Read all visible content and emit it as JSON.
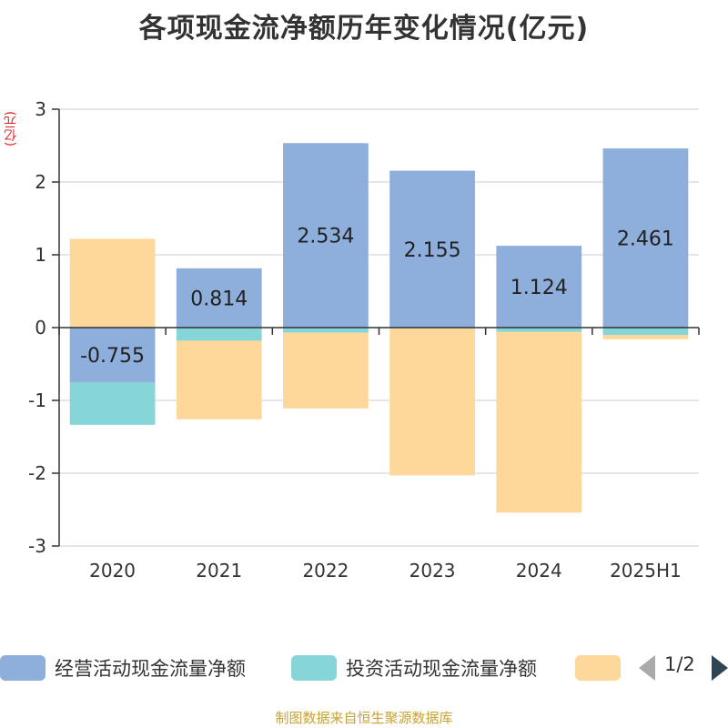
{
  "title": "各项现金流净额历年变化情况(亿元)",
  "unit": "(亿元)",
  "source": "制图数据来自恒生聚源数据库",
  "legend": {
    "items": [
      {
        "label": "经营活动现金流量净额",
        "color": "#8eaedc"
      },
      {
        "label": "投资活动现金流量净额",
        "color": "#86d5d8"
      },
      {
        "label": "",
        "color": "#fdd89a"
      }
    ],
    "page": "1/2"
  },
  "chart_data": {
    "type": "bar",
    "stacked": true,
    "categories": [
      "2020",
      "2021",
      "2022",
      "2023",
      "2024",
      "2025H1"
    ],
    "ylim": [
      -3,
      3
    ],
    "yticks": [
      3,
      2,
      1,
      0,
      -1,
      -2,
      -3
    ],
    "grid": true,
    "legend_position": "bottom",
    "series": [
      {
        "name": "经营活动现金流量净额",
        "color": "#8eaedc",
        "values": [
          -0.755,
          0.814,
          2.534,
          2.155,
          1.124,
          2.461
        ],
        "labels": [
          "-0.755",
          "0.814",
          "2.534",
          "2.155",
          "1.124",
          "2.461"
        ]
      },
      {
        "name": "投资活动现金流量净额",
        "color": "#86d5d8",
        "values": [
          -0.58,
          -0.18,
          -0.07,
          -0.01,
          -0.06,
          -0.1
        ]
      },
      {
        "color": "#fdd89a",
        "values": [
          1.22,
          -1.08,
          -1.04,
          -2.02,
          -2.48,
          -0.06
        ]
      }
    ]
  }
}
